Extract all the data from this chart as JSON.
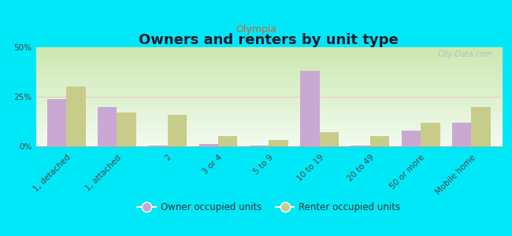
{
  "title": "Owners and renters by unit type",
  "subtitle": "Olympia",
  "categories": [
    "1, detached",
    "1, attached",
    "2",
    "3 or 4",
    "5 to 9",
    "10 to 19",
    "20 to 49",
    "50 or more",
    "Mobile home"
  ],
  "owner_values": [
    24,
    20,
    0.3,
    1,
    0.3,
    38,
    0.3,
    8,
    12
  ],
  "renter_values": [
    30,
    17,
    16,
    5,
    3,
    7,
    5,
    12,
    20
  ],
  "owner_color": "#c9a8d4",
  "renter_color": "#c8cc8a",
  "ylim": [
    0,
    50
  ],
  "yticks": [
    0,
    25,
    50
  ],
  "yticklabels": [
    "0%",
    "25%",
    "50%"
  ],
  "bar_width": 0.38,
  "figure_bg": "#00e8f8",
  "plot_bg_top": "#cce8b0",
  "plot_bg_bottom": "#f2fbf0",
  "watermark": "City-Data.com",
  "legend_owner": "Owner occupied units",
  "legend_renter": "Renter occupied units",
  "title_fontsize": 13,
  "subtitle_fontsize": 9,
  "tick_fontsize": 7.5,
  "legend_fontsize": 8.5,
  "gridline_color": "#f0a0a0",
  "gridline_alpha": 0.6
}
